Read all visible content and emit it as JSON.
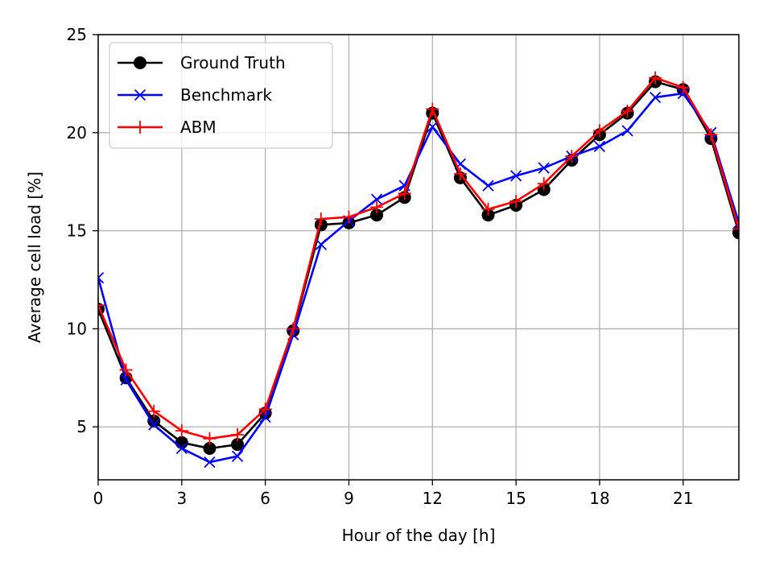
{
  "chart_data": {
    "type": "line",
    "xlabel": "Hour of the day [h]",
    "ylabel": "Average cell load [%]",
    "xlim": [
      0,
      23
    ],
    "ylim": [
      2.3,
      25
    ],
    "xticks": [
      0,
      3,
      6,
      9,
      12,
      15,
      18,
      21
    ],
    "yticks": [
      5,
      10,
      15,
      20,
      25
    ],
    "grid": true,
    "legend_position": "top-left",
    "x": [
      0,
      1,
      2,
      3,
      4,
      5,
      6,
      7,
      8,
      9,
      10,
      11,
      12,
      13,
      14,
      15,
      16,
      17,
      18,
      19,
      20,
      21,
      22,
      23
    ],
    "series": [
      {
        "name": "Ground Truth",
        "color": "#000000",
        "marker": "circle",
        "values": [
          11.0,
          7.5,
          5.3,
          4.2,
          3.9,
          4.1,
          5.7,
          9.9,
          15.3,
          15.4,
          15.8,
          16.7,
          21.0,
          17.7,
          15.8,
          16.3,
          17.1,
          18.6,
          19.9,
          21.0,
          22.6,
          22.2,
          19.7,
          14.9
        ]
      },
      {
        "name": "Benchmark",
        "color": "#0000ff",
        "marker": "x",
        "values": [
          12.6,
          7.4,
          5.1,
          3.9,
          3.2,
          3.5,
          5.5,
          9.7,
          14.3,
          15.5,
          16.6,
          17.3,
          20.3,
          18.4,
          17.3,
          17.8,
          18.2,
          18.8,
          19.3,
          20.1,
          21.8,
          22.0,
          20.0,
          15.4
        ]
      },
      {
        "name": "ABM",
        "color": "#ff0000",
        "marker": "plus",
        "values": [
          11.2,
          7.9,
          5.8,
          4.8,
          4.4,
          4.6,
          5.9,
          10.0,
          15.6,
          15.7,
          16.2,
          16.9,
          21.2,
          17.9,
          16.1,
          16.5,
          17.4,
          18.8,
          20.1,
          21.1,
          22.8,
          22.3,
          19.9,
          15.1
        ]
      }
    ]
  }
}
